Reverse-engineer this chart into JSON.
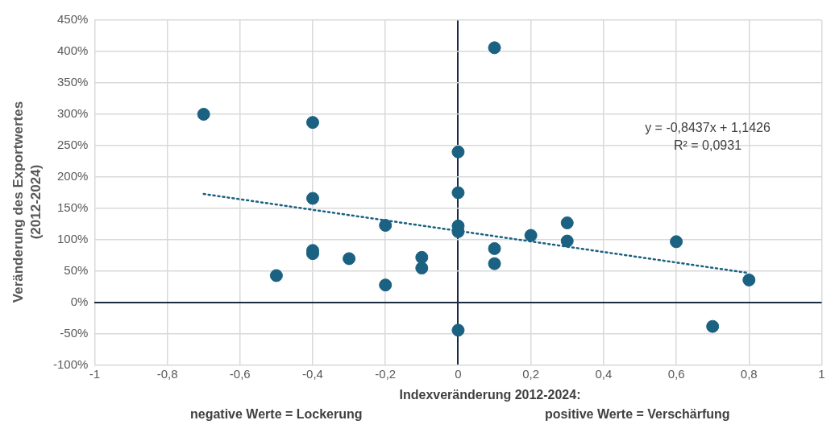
{
  "chart_data": {
    "type": "scatter",
    "xlabel": "Indexveränderung 2012-2024:",
    "ylabel": "Veränderung des Exportwertes (2012-2024)",
    "series": [
      {
        "color": "#1b6182",
        "x": [
          -0.7,
          -0.4,
          0.1,
          0,
          0,
          -0.4,
          -0.2,
          0,
          0,
          0.3,
          0.2,
          0.3,
          0.6,
          -0.4,
          -0.4,
          -0.3,
          -0.1,
          -0.1,
          0.1,
          0.1,
          -0.5,
          -0.2,
          0.8,
          0,
          0.7
        ],
        "values": [
          300,
          287,
          406,
          240,
          175,
          166,
          123,
          122,
          113,
          127,
          107,
          98,
          97,
          83,
          78,
          70,
          72,
          55,
          86,
          62,
          43,
          28,
          36,
          -44,
          -38
        ]
      },
      {
        "type": "line",
        "color": "#1b6182",
        "line_style": "dotted",
        "marker": "none",
        "x": [
          -0.7,
          0.8
        ],
        "values": [
          173,
          47
        ]
      }
    ],
    "xlim": [
      -1,
      1
    ],
    "xticks": [
      -1,
      {
        "value": -0.8,
        "label": "-0,8"
      },
      {
        "value": -0.6,
        "label": "-0,6"
      },
      {
        "value": -0.4,
        "label": "-0,4"
      },
      {
        "value": -0.2,
        "label": "-0,2"
      },
      0,
      {
        "value": 0.2,
        "label": "0,2"
      },
      {
        "value": 0.4,
        "label": "0,4"
      },
      {
        "value": 0.6,
        "label": "0,6"
      },
      {
        "value": 0.8,
        "label": "0,8"
      },
      1
    ],
    "ylim": [
      -100,
      450
    ],
    "yticks": [
      {
        "value": -100,
        "label": "-100%"
      },
      {
        "value": -50,
        "label": "-50%"
      },
      {
        "value": 0,
        "label": "0%"
      },
      {
        "value": 50,
        "label": "50%"
      },
      {
        "value": 100,
        "label": "100%"
      },
      {
        "value": 150,
        "label": "150%"
      },
      {
        "value": 200,
        "label": "200%"
      },
      {
        "value": 250,
        "label": "250%"
      },
      {
        "value": 300,
        "label": "300%"
      },
      {
        "value": 350,
        "label": "350%"
      },
      {
        "value": 400,
        "label": "400%"
      },
      {
        "value": 450,
        "label": "450%"
      }
    ],
    "grid": true,
    "legend": false,
    "marker": "circle",
    "annotations": [
      "y = -0,8437x + 1,1426",
      "R² = 0,0931",
      "negative Werte = Lockerung",
      "positive Werte = Verschärfung"
    ]
  }
}
